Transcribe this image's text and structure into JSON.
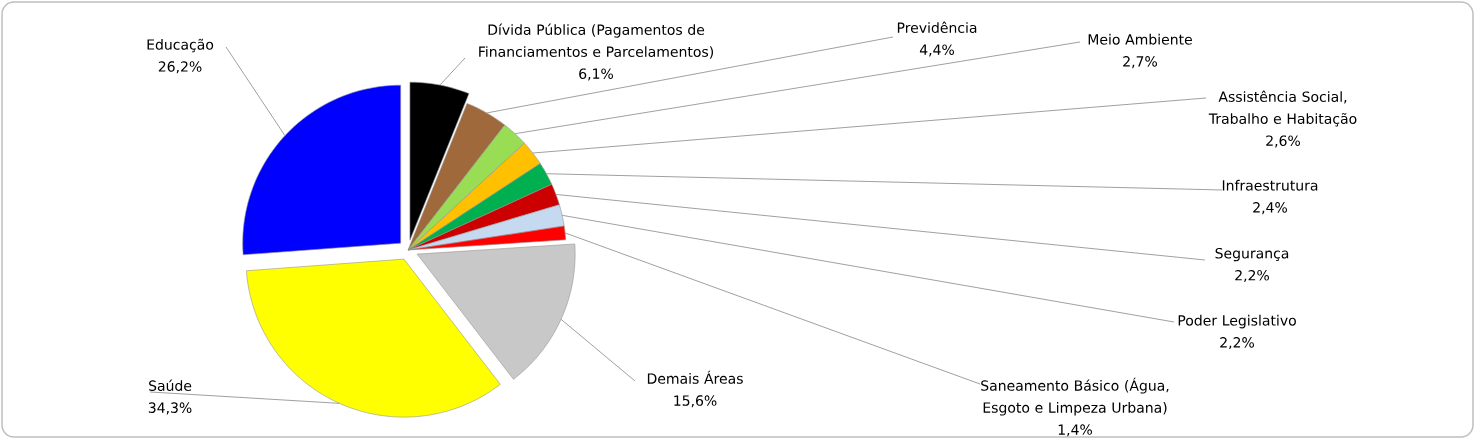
{
  "chart_data": {
    "type": "pie",
    "categories": [
      "Dívida Pública (Pagamentos de Financiamentos e Parcelamentos)",
      "Previdência",
      "Meio Ambiente",
      "Assistência Social, Trabalho e Habitação",
      "Infraestrutura",
      "Segurança",
      "Poder Legislativo",
      "Saneamento Básico (Água, Esgoto e Limpeza Urbana)",
      "Demais Áreas",
      "Saúde",
      "Educação"
    ],
    "values": [
      6.1,
      4.4,
      2.7,
      2.6,
      2.4,
      2.2,
      2.2,
      1.4,
      15.6,
      34.3,
      26.2
    ],
    "value_labels": [
      "6,1%",
      "4,4%",
      "2,7%",
      "2,6%",
      "2,4%",
      "2,2%",
      "2,2%",
      "1,4%",
      "15,6%",
      "34,3%",
      "26,2%"
    ],
    "colors": [
      "#000000",
      "#a0693c",
      "#99dd55",
      "#ffc000",
      "#00b050",
      "#cc0000",
      "#c5d9f1",
      "#ff0000",
      "#c8c8c8",
      "#ffff00",
      "#0000ff"
    ]
  }
}
